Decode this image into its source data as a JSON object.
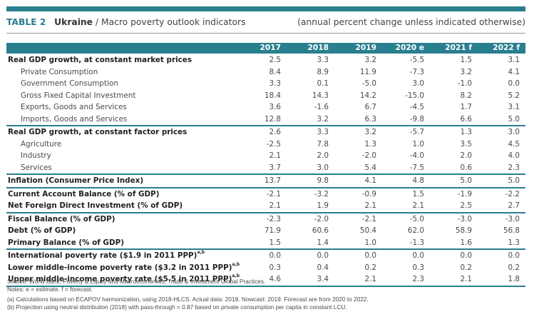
{
  "header": {
    "table_number": "TABLE 2",
    "country": "Ukraine",
    "separator": " / ",
    "subtitle": "Macro poverty outlook indicators",
    "units_note": "(annual percent change unless indicated otherwise)"
  },
  "table": {
    "columns": [
      "",
      "2017",
      "2018",
      "2019",
      "2020 e",
      "2021 f",
      "2022 f"
    ],
    "rows": [
      {
        "label": "Real GDP growth, at constant market prices",
        "sup": "",
        "style": "bold",
        "values": [
          "2.5",
          "3.3",
          "3.2",
          "-5.5",
          "1.5",
          "3.1"
        ]
      },
      {
        "label": "Private Consumption",
        "sup": "",
        "style": "sub",
        "values": [
          "8.4",
          "8.9",
          "11.9",
          "-7.3",
          "3.2",
          "4.1"
        ]
      },
      {
        "label": "Government Consumption",
        "sup": "",
        "style": "sub",
        "values": [
          "3.3",
          "0.1",
          "-5.0",
          "3.0",
          "-1.0",
          "0.0"
        ]
      },
      {
        "label": "Gross Fixed Capital Investment",
        "sup": "",
        "style": "sub",
        "values": [
          "18.4",
          "14.3",
          "14.2",
          "-15.0",
          "8.2",
          "5.2"
        ]
      },
      {
        "label": "Exports, Goods and Services",
        "sup": "",
        "style": "sub",
        "values": [
          "3.6",
          "-1.6",
          "6.7",
          "-4.5",
          "1.7",
          "3.1"
        ]
      },
      {
        "label": "Imports, Goods and Services",
        "sup": "",
        "style": "sub",
        "values": [
          "12.8",
          "3.2",
          "6.3",
          "-9.8",
          "6.6",
          "5.0"
        ]
      },
      {
        "label": "Real GDP growth, at constant factor prices",
        "sup": "",
        "style": "bold",
        "values": [
          "2.6",
          "3.3",
          "3.2",
          "-5.7",
          "1.3",
          "3.0"
        ]
      },
      {
        "label": "Agriculture",
        "sup": "",
        "style": "sub",
        "values": [
          "-2.5",
          "7.8",
          "1.3",
          "1.0",
          "3.5",
          "4.5"
        ]
      },
      {
        "label": "Industry",
        "sup": "",
        "style": "sub",
        "values": [
          "2.1",
          "2.0",
          "-2.0",
          "-4.0",
          "2.0",
          "4.0"
        ]
      },
      {
        "label": "Services",
        "sup": "",
        "style": "sub",
        "values": [
          "3.7",
          "3.0",
          "5.4",
          "-7.5",
          "0.6",
          "2.3"
        ]
      },
      {
        "label": "Inflation (Consumer Price Index)",
        "sup": "",
        "style": "bold",
        "values": [
          "13.7",
          "9.8",
          "4.1",
          "4.8",
          "5.0",
          "5.0"
        ]
      },
      {
        "label": "Current Account Balance (% of GDP)",
        "sup": "",
        "style": "bold",
        "values": [
          "-2.1",
          "-3.2",
          "-0.9",
          "1.5",
          "-1.9",
          "-2.2"
        ]
      },
      {
        "label": "Net Foreign Direct Investment (% of GDP)",
        "sup": "",
        "style": "bold",
        "values": [
          "2.1",
          "1.9",
          "2.1",
          "2.1",
          "2.5",
          "2.7"
        ]
      },
      {
        "label": "Fiscal Balance (% of GDP)",
        "sup": "",
        "style": "bold",
        "values": [
          "-2.3",
          "-2.0",
          "-2.1",
          "-5.0",
          "-3.0",
          "-3.0"
        ]
      },
      {
        "label": "Debt (% of GDP)",
        "sup": "",
        "style": "bold",
        "values": [
          "71.9",
          "60.6",
          "50.4",
          "62.0",
          "58.9",
          "56.8"
        ]
      },
      {
        "label": "Primary Balance (% of GDP)",
        "sup": "",
        "style": "bold",
        "values": [
          "1.5",
          "1.4",
          "1.0",
          "-1.3",
          "1.6",
          "1.3"
        ]
      },
      {
        "label": "International poverty rate ($1.9 in 2011 PPP)",
        "sup": "a,b",
        "style": "bold",
        "values": [
          "0.0",
          "0.0",
          "0.0",
          "0.0",
          "0.0",
          "0.0"
        ]
      },
      {
        "label": "Lower middle-income poverty rate ($3.2 in 2011 PPP)",
        "sup": "a,b",
        "style": "bold",
        "values": [
          "0.3",
          "0.4",
          "0.2",
          "0.3",
          "0.2",
          "0.2"
        ]
      },
      {
        "label": "Upper middle-income poverty rate ($5.5 in 2011 PPP)",
        "sup": "a,b",
        "style": "bold",
        "values": [
          "4.6",
          "3.4",
          "2.1",
          "2.3",
          "2.1",
          "1.8"
        ]
      }
    ]
  },
  "notes": {
    "source": "Source: World Bank, Poverty & Equity and Macroeconomics, Trade & Investment Global Practices.",
    "legend": "Notes: e = estimate. f = forecast.",
    "note_a": "(a) Calculations based on ECAPOV harmonization, using 2018-HLCS. Actual data: 2018. Nowcast: 2019. Forecast are from 2020 to 2022.",
    "note_b": "(b) Projection using neutral distribution (2018) with pass-through = 0.87  based on private consumption per capita in constant LCU."
  },
  "colors": {
    "accent": "#2a7f8f",
    "rule": "#9a9a9a"
  }
}
